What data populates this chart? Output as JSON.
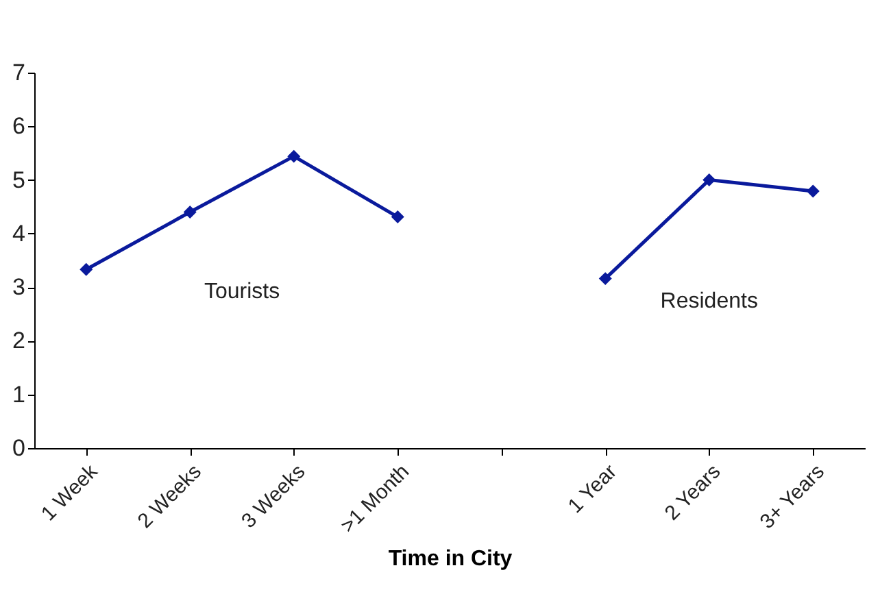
{
  "chart_data": {
    "type": "line",
    "xlabel": "Time in City",
    "categories": [
      "1 Week",
      "2 Weeks",
      "3 Weeks",
      ">1 Month",
      null,
      "1 Year",
      "2 Years",
      "3+ Years"
    ],
    "series": [
      {
        "name": "Tourists",
        "color": "#0a1a9c",
        "values": [
          3.33,
          4.4,
          5.44,
          4.31,
          null,
          null,
          null,
          null
        ]
      },
      {
        "name": "Residents",
        "color": "#0a1a9c",
        "values": [
          null,
          null,
          null,
          null,
          null,
          3.16,
          5.0,
          4.79
        ]
      }
    ],
    "ylim": [
      0,
      7
    ],
    "yticks": [
      0,
      1,
      2,
      3,
      4,
      5,
      6,
      7
    ],
    "grid": false,
    "legend": false,
    "marker": "diamond",
    "line_style": "solid"
  }
}
